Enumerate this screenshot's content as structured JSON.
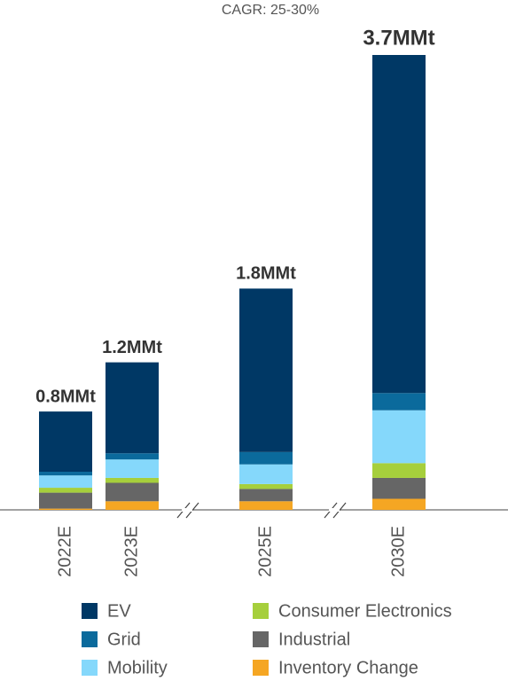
{
  "chart_data": {
    "type": "stacked_bar",
    "annotation": "CAGR: 25-30%",
    "categories": [
      "2022E",
      "2023E",
      "2025E",
      "2030E"
    ],
    "totals": [
      0.8,
      1.2,
      1.8,
      3.7
    ],
    "total_labels": [
      "0.8MMt",
      "1.2MMt",
      "1.8MMt",
      "3.7MMt"
    ],
    "series": [
      {
        "name": "EV",
        "color": "#003865",
        "values": [
          0.49,
          0.74,
          1.33,
          2.75
        ]
      },
      {
        "name": "Grid",
        "color": "#0b6a9c",
        "values": [
          0.03,
          0.05,
          0.1,
          0.14
        ]
      },
      {
        "name": "Mobility",
        "color": "#85d8fb",
        "values": [
          0.1,
          0.15,
          0.16,
          0.43
        ]
      },
      {
        "name": "Consumer Electronics",
        "color": "#a6cf3c",
        "values": [
          0.04,
          0.04,
          0.04,
          0.12
        ]
      },
      {
        "name": "Industrial",
        "color": "#666666",
        "values": [
          0.13,
          0.15,
          0.1,
          0.17
        ]
      },
      {
        "name": "Inventory Change",
        "color": "#f5a623",
        "values": [
          0.01,
          0.07,
          0.07,
          0.09
        ]
      }
    ]
  }
}
